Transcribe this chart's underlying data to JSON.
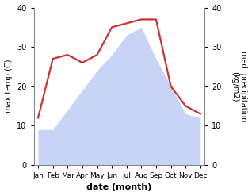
{
  "months": [
    "Jan",
    "Feb",
    "Mar",
    "Apr",
    "May",
    "Jun",
    "Jul",
    "Aug",
    "Sep",
    "Oct",
    "Nov",
    "Dec"
  ],
  "temp": [
    9,
    9,
    14,
    19,
    24,
    28,
    33,
    35,
    27,
    20,
    13,
    12
  ],
  "precip": [
    12,
    27,
    28,
    26,
    28,
    35,
    36,
    37,
    37,
    20,
    15,
    13
  ],
  "precip_color": "#cc3333",
  "temp_fill_color": "#c8d4f5",
  "xlabel": "date (month)",
  "ylabel_left": "max temp (C)",
  "ylabel_right": "med. precipitation\n(kg/m2)",
  "ylim": [
    0,
    40
  ],
  "yticks": [
    0,
    10,
    20,
    30,
    40
  ],
  "background_color": "#ffffff"
}
